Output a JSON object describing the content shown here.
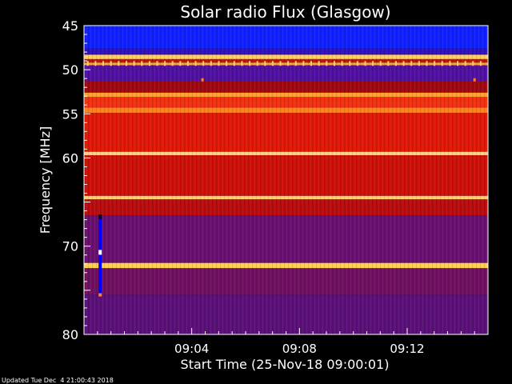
{
  "chart_data": {
    "type": "heatmap",
    "title": "Solar radio Flux (Glasgow)",
    "xlabel": "Start Time (25-Nov-18 09:00:01)",
    "ylabel": "Frequency [MHz]",
    "footer": "Updated Tue Dec  4 21:00:43 2018",
    "x_range_minutes": [
      0,
      15
    ],
    "x_ticks": [
      {
        "minute": 4,
        "label": "09:04"
      },
      {
        "minute": 8,
        "label": "09:08"
      },
      {
        "minute": 12,
        "label": "09:12"
      }
    ],
    "y_range_mhz": [
      45,
      80
    ],
    "y_inverted": true,
    "y_ticks": [
      {
        "value": 45,
        "label": "45"
      },
      {
        "value": 50,
        "label": "50"
      },
      {
        "value": 55,
        "label": "55"
      },
      {
        "value": 60,
        "label": "60"
      },
      {
        "value": 70,
        "label": "70"
      },
      {
        "value": 80,
        "label": "80"
      }
    ],
    "bands": [
      {
        "from": 45.0,
        "to": 47.6,
        "color": "#1020ff"
      },
      {
        "from": 47.6,
        "to": 48.3,
        "color": "#3010c0"
      },
      {
        "from": 48.3,
        "to": 48.8,
        "color": "#ffd060"
      },
      {
        "from": 48.8,
        "to": 49.2,
        "color": "#b01810"
      },
      {
        "from": 49.2,
        "to": 49.5,
        "color": "#ffa040"
      },
      {
        "from": 49.5,
        "to": 51.3,
        "color": "#5010a0"
      },
      {
        "from": 51.3,
        "to": 52.6,
        "color": "#a00810"
      },
      {
        "from": 52.6,
        "to": 53.1,
        "color": "#ffa030"
      },
      {
        "from": 53.1,
        "to": 54.3,
        "color": "#f03010"
      },
      {
        "from": 54.3,
        "to": 54.9,
        "color": "#ff8020"
      },
      {
        "from": 54.9,
        "to": 59.3,
        "color": "#e01808"
      },
      {
        "from": 59.3,
        "to": 59.7,
        "color": "#ffd080"
      },
      {
        "from": 59.7,
        "to": 64.3,
        "color": "#cc1008"
      },
      {
        "from": 64.3,
        "to": 64.7,
        "color": "#ffd070"
      },
      {
        "from": 64.7,
        "to": 66.5,
        "color": "#b80c10"
      },
      {
        "from": 66.5,
        "to": 71.9,
        "color": "#6a1070"
      },
      {
        "from": 71.9,
        "to": 72.5,
        "color": "#ffd050"
      },
      {
        "from": 72.5,
        "to": 75.5,
        "color": "#701060"
      },
      {
        "from": 75.5,
        "to": 80.0,
        "color": "#5a1078"
      }
    ],
    "dashed_line": {
      "freq": 49.2,
      "color": "#ffd060",
      "period_minutes": 0.286
    },
    "dots": [
      {
        "minute": 4.4,
        "freq": 51.1,
        "color": "#ff8030"
      },
      {
        "minute": 14.5,
        "freq": 51.1,
        "color": "#ff8030"
      }
    ],
    "burst": {
      "minute": 0.6,
      "from": 66.4,
      "to": 75.7,
      "color": "#0000ff",
      "bright_at": 70.7
    }
  }
}
